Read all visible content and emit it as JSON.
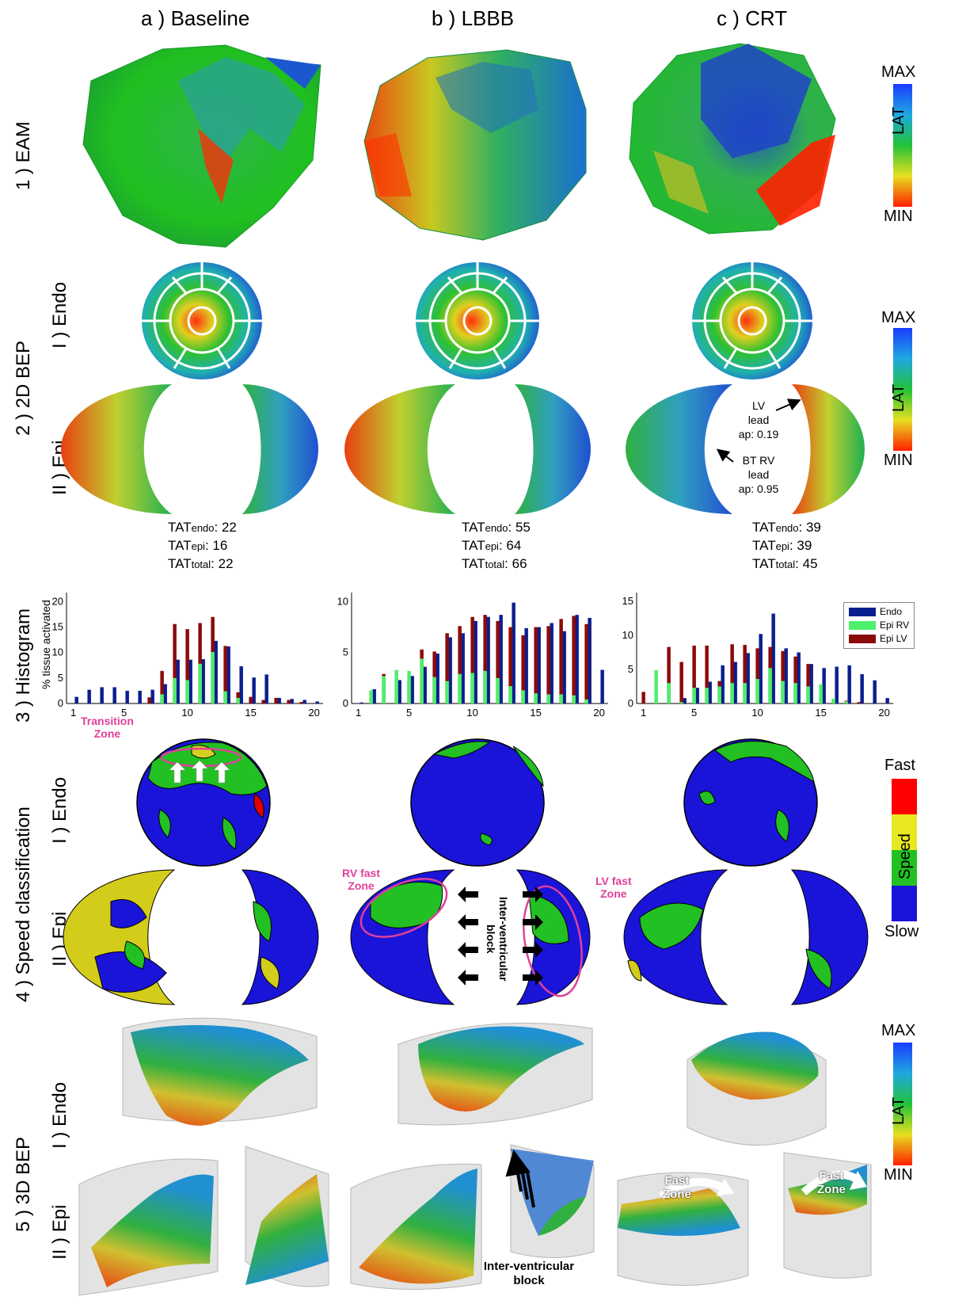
{
  "columns": [
    "a ) Baseline",
    "b ) LBBB",
    "c ) CRT"
  ],
  "rows": {
    "r1": "1 ) EAM",
    "r2": "2 ) 2D BEP",
    "r3": "3 ) Histogram",
    "r4": "4 ) Speed classification",
    "r5": "5 ) 3D BEP"
  },
  "sub": {
    "endo": "I ) Endo",
    "epi": "II ) Epi"
  },
  "colorbar_lat": {
    "max": "MAX",
    "mid": "LAT",
    "min": "MIN"
  },
  "colorbar_speed": {
    "fast": "Fast",
    "mid": "Speed",
    "slow": "Slow"
  },
  "tat": [
    {
      "endo_label": "TAT",
      "endo_sub": "endo",
      "endo": ": 22",
      "epi_label": "TAT",
      "epi_sub": "epi",
      "epi": ": 16",
      "total_label": "TAT",
      "total_sub": "total",
      "total": ": 22"
    },
    {
      "endo_label": "TAT",
      "endo_sub": "endo",
      "endo": ": 55",
      "epi_label": "TAT",
      "epi_sub": "epi",
      "epi": ": 64",
      "total_label": "TAT",
      "total_sub": "total",
      "total": ": 66"
    },
    {
      "endo_label": "TAT",
      "endo_sub": "endo",
      "endo": ": 39",
      "epi_label": "TAT",
      "epi_sub": "epi",
      "epi": ": 39",
      "total_label": "TAT",
      "total_sub": "total",
      "total": ": 45"
    }
  ],
  "annotations": {
    "lv_lead": [
      "LV",
      "lead",
      "ap: 0.19"
    ],
    "bt_rv_lead": [
      "BT RV",
      "lead",
      "ap: 0.95"
    ],
    "transition_zone": [
      "Transition",
      "Zone"
    ],
    "rv_fast_zone": [
      "RV fast",
      "Zone"
    ],
    "lv_fast_zone": [
      "LV fast",
      "Zone"
    ],
    "iv_block_vertical": "Inter-ventricular block",
    "iv_block_bottom": [
      "Inter-ventricular",
      "block"
    ],
    "fast_zone": [
      "Fast",
      "Zone"
    ]
  },
  "colors": {
    "endo": "#0a1f8f",
    "epi_rv": "#4cf06a",
    "epi_lv": "#8b0a0a"
  },
  "chart_data": [
    {
      "type": "bar",
      "title": "",
      "ylabel": "% tissue activated",
      "xlabel": "",
      "x": [
        1,
        2,
        3,
        4,
        5,
        6,
        7,
        8,
        9,
        10,
        11,
        12,
        13,
        14,
        15,
        16,
        17,
        18,
        19,
        20
      ],
      "xticks": [
        "1",
        "5",
        "10",
        "15",
        "20"
      ],
      "yticks": [
        "0",
        "5",
        "10",
        "15",
        "20"
      ],
      "ylim": [
        0,
        21
      ],
      "series": [
        {
          "name": "Endo",
          "values": [
            1.3,
            2.7,
            3.2,
            3.2,
            2.5,
            2.5,
            2.7,
            3.8,
            8.6,
            8.6,
            8.7,
            12.3,
            11.2,
            7.3,
            5.1,
            5.7,
            1.1,
            0.9,
            0.7,
            0.4
          ]
        },
        {
          "name": "Epi RV",
          "values": [
            0,
            0,
            0,
            0,
            0,
            0,
            0,
            1.8,
            5,
            4.6,
            7.8,
            10.1,
            2.4,
            1.1,
            0,
            0,
            0,
            0,
            0,
            0
          ]
        },
        {
          "name": "Epi LV",
          "values": [
            0,
            0,
            0,
            0,
            0,
            0,
            1.2,
            6.4,
            15.6,
            14.6,
            15.8,
            17,
            11.3,
            2.2,
            1.3,
            0.7,
            1.1,
            0.7,
            0.3,
            0
          ]
        }
      ]
    },
    {
      "type": "bar",
      "title": "",
      "ylabel": "",
      "xlabel": "",
      "x": [
        1,
        2,
        3,
        4,
        5,
        6,
        7,
        8,
        9,
        10,
        11,
        12,
        13,
        14,
        15,
        16,
        17,
        18,
        19,
        20
      ],
      "xticks": [
        "1",
        "5",
        "10",
        "15",
        "20"
      ],
      "yticks": [
        "0",
        "5",
        "10"
      ],
      "ylim": [
        0,
        10.5
      ],
      "series": [
        {
          "name": "Endo",
          "values": [
            0.1,
            1.4,
            0,
            2.3,
            2.7,
            3.6,
            4.9,
            6.5,
            6.9,
            8.1,
            8.5,
            8.7,
            9.9,
            7.4,
            7.5,
            7.9,
            7.1,
            8.7,
            8.4,
            3.3
          ]
        },
        {
          "name": "Epi RV",
          "values": [
            0,
            1.3,
            2.7,
            3.3,
            3.2,
            4.4,
            2.6,
            2.2,
            2.9,
            3,
            3.2,
            2.5,
            1.7,
            1.3,
            1,
            0.9,
            0.9,
            0.8,
            0.4,
            0
          ]
        },
        {
          "name": "Epi LV",
          "values": [
            0,
            0,
            2.9,
            1,
            2.2,
            5.3,
            5.1,
            6.9,
            7.6,
            8.5,
            8.7,
            8.1,
            7.5,
            6.7,
            7.5,
            7.6,
            8.3,
            8.6,
            7.8,
            0
          ]
        }
      ]
    },
    {
      "type": "bar",
      "title": "",
      "ylabel": "",
      "xlabel": "",
      "x": [
        1,
        2,
        3,
        4,
        5,
        6,
        7,
        8,
        9,
        10,
        11,
        12,
        13,
        14,
        15,
        16,
        17,
        18,
        19,
        20
      ],
      "xticks": [
        "1",
        "5",
        "10",
        "15",
        "20"
      ],
      "yticks": [
        "0",
        "5",
        "10",
        "15"
      ],
      "ylim": [
        0,
        15.7
      ],
      "series": [
        {
          "name": "Endo",
          "values": [
            0,
            0,
            0,
            0.8,
            2.3,
            3.2,
            5.6,
            6.1,
            7.4,
            10.2,
            13.2,
            8.1,
            7.5,
            5.8,
            5.2,
            5.4,
            5.6,
            4.3,
            3.4,
            0.8
          ]
        },
        {
          "name": "Epi RV",
          "values": [
            0,
            4.9,
            3,
            0.2,
            2.3,
            2.3,
            2.5,
            3,
            3,
            3.6,
            5.2,
            3.3,
            3,
            2.5,
            2.8,
            0.7,
            0.3,
            0,
            0,
            0
          ]
        },
        {
          "name": "Epi LV",
          "values": [
            1.7,
            0.7,
            8.3,
            6.1,
            8.5,
            8.5,
            3.3,
            8.7,
            8.6,
            8.1,
            8.3,
            7.7,
            6.9,
            5.8,
            0.8,
            0.4,
            0.4,
            0.2,
            0,
            0
          ]
        }
      ]
    }
  ]
}
